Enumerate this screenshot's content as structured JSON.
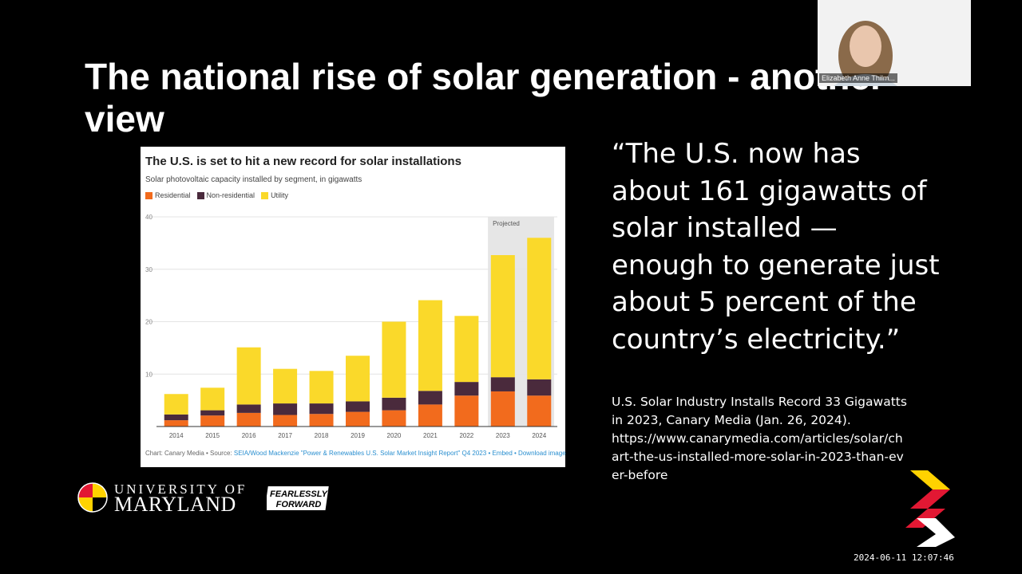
{
  "slide": {
    "title": "The national rise of solar generation - another view",
    "quote_lines": [
      "“The U.S. now has",
      "about 161 gigawatts of",
      "solar installed —",
      "enough to generate just",
      "about 5 percent of the",
      "country’s electricity.”"
    ],
    "citation_lines": [
      "U.S. Solar Industry Installs Record 33 Gigawatts",
      "in 2023, Canary Media (Jan. 26, 2024).",
      "https://www.canarymedia.com/articles/solar/ch",
      "art-the-us-installed-more-solar-in-2023-than-ev",
      "er-before"
    ]
  },
  "chart": {
    "title": "The U.S. is set to hit a new record for solar installations",
    "subtitle": "Solar photovoltaic capacity installed by segment, in gigawatts",
    "legend": [
      "Residential",
      "Non-residential",
      "Utility"
    ],
    "projected_label": "Projected",
    "footer_prefix": "Chart: Canary Media • Source: ",
    "footer_source": "SEIA/Wood Mackenzie \"Power & Renewables U.S. Solar Market Insight Report\" Q4 2023",
    "footer_embed": " • Embed • Download image"
  },
  "chart_data": {
    "type": "bar",
    "stacked": true,
    "categories": [
      "2014",
      "2015",
      "2016",
      "2017",
      "2018",
      "2019",
      "2020",
      "2021",
      "2022",
      "2023",
      "2024"
    ],
    "series": [
      {
        "name": "Residential",
        "color": "#f26b1d",
        "values": [
          1.2,
          2.1,
          2.6,
          2.2,
          2.4,
          2.8,
          3.1,
          4.2,
          5.9,
          6.7,
          5.9
        ]
      },
      {
        "name": "Non-residential",
        "color": "#4a2a3c",
        "values": [
          1.1,
          1.0,
          1.6,
          2.2,
          2.0,
          2.0,
          2.4,
          2.6,
          2.6,
          2.7,
          3.1
        ]
      },
      {
        "name": "Utility",
        "color": "#fad92a",
        "values": [
          3.9,
          4.3,
          10.9,
          6.6,
          6.2,
          8.7,
          14.5,
          17.3,
          12.6,
          23.3,
          27.0
        ]
      }
    ],
    "ylim": [
      0,
      40
    ],
    "yticks": [
      10,
      20,
      30,
      40
    ],
    "projected_from": "2023",
    "grid": true
  },
  "webcam": {
    "participant_name": "Elizabeth Anne Thilm..."
  },
  "logos": {
    "umd_top": "UNIVERSITY OF",
    "umd_bottom": "MARYLAND",
    "ff_line1": "FEARLESSLY",
    "ff_line2": "FORWARD"
  },
  "timestamp": "2024-06-11 12:07:46"
}
